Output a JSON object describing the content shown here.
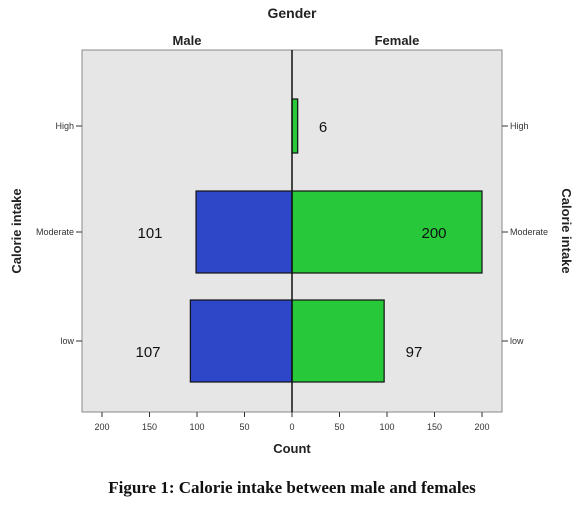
{
  "chart_data": {
    "type": "bar",
    "orientation": "horizontal-population-pyramid",
    "title": "Gender",
    "xlabel": "Count",
    "ylabel_left": "Calorie intake",
    "ylabel_right": "Calorie intake",
    "categories": [
      "High",
      "Moderate",
      "low"
    ],
    "x_ticks": [
      200,
      150,
      100,
      50,
      0,
      50,
      100,
      150,
      200
    ],
    "xlim": [
      0,
      200
    ],
    "grid": false,
    "series": [
      {
        "name": "Male",
        "side": "left",
        "color": "#2e47c9",
        "values": [
          0,
          101,
          107
        ],
        "labels": [
          "",
          "101",
          "107"
        ]
      },
      {
        "name": "Female",
        "side": "right",
        "color": "#27c93a",
        "values": [
          6,
          200,
          97
        ],
        "labels": [
          "6",
          "200",
          "97"
        ]
      }
    ]
  },
  "figure_caption": "Figure 1: Calorie intake between male and females"
}
